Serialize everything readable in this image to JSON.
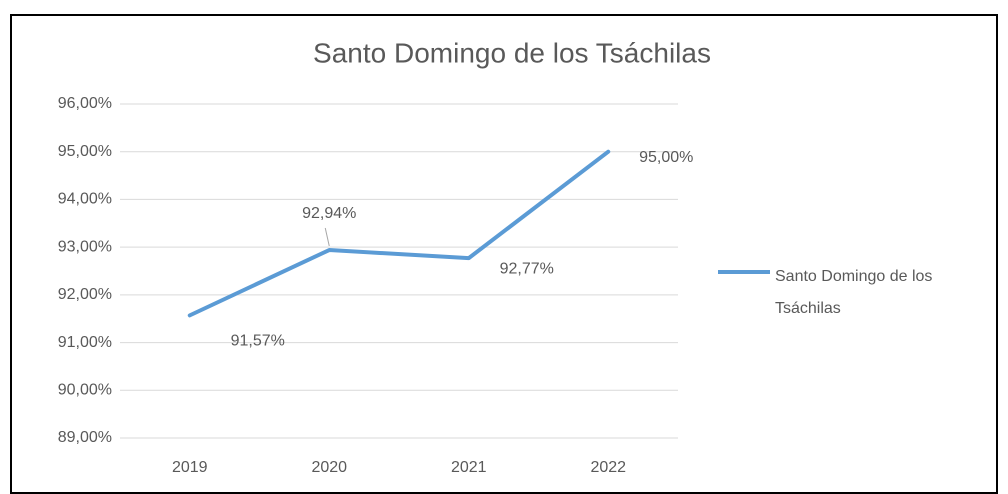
{
  "chart_data": {
    "type": "line",
    "title": "Santo Domingo de los Tsáchilas",
    "categories": [
      "2019",
      "2020",
      "2021",
      "2022"
    ],
    "series": [
      {
        "name": "Santo Domingo de los Tsáchilas",
        "color": "#5b9bd5",
        "values": [
          91.57,
          92.94,
          92.77,
          95.0
        ],
        "value_labels": [
          "91,57%",
          "92,94%",
          "92,77%",
          "95,00%"
        ]
      }
    ],
    "ylim": [
      89,
      96
    ],
    "yticks": [
      {
        "value": 89,
        "label": "89,00%"
      },
      {
        "value": 90,
        "label": "90,00%"
      },
      {
        "value": 91,
        "label": "91,00%"
      },
      {
        "value": 92,
        "label": "92,00%"
      },
      {
        "value": 93,
        "label": "93,00%"
      },
      {
        "value": 94,
        "label": "94,00%"
      },
      {
        "value": 95,
        "label": "95,00%"
      },
      {
        "value": 96,
        "label": "96,00%"
      }
    ],
    "grid": true,
    "legend": "right"
  }
}
